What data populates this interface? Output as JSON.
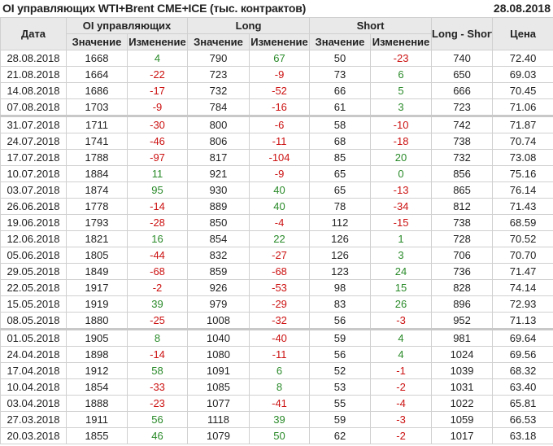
{
  "title": "OI управляющих WTI+Brent CME+ICE (тыс. контрактов)",
  "report_date": "28.08.2018",
  "colors": {
    "positive": "#2a8a2a",
    "negative": "#cc1111",
    "header_bg": "#e9e9e9"
  },
  "headers": {
    "date": "Дата",
    "oi": "OI управляющих",
    "long": "Long",
    "short": "Short",
    "long_short": "Long - Short",
    "price": "Цена",
    "value": "Значение",
    "change": "Изменение"
  },
  "rows": [
    [
      "28.08.2018",
      "1668",
      "4",
      "790",
      "67",
      "50",
      "-23",
      "740",
      "72.40"
    ],
    [
      "21.08.2018",
      "1664",
      "-22",
      "723",
      "-9",
      "73",
      "6",
      "650",
      "69.03"
    ],
    [
      "14.08.2018",
      "1686",
      "-17",
      "732",
      "-52",
      "66",
      "5",
      "666",
      "70.45"
    ],
    [
      "07.08.2018",
      "1703",
      "-9",
      "784",
      "-16",
      "61",
      "3",
      "723",
      "71.06"
    ],
    [
      "31.07.2018",
      "1711",
      "-30",
      "800",
      "-6",
      "58",
      "-10",
      "742",
      "71.87"
    ],
    [
      "24.07.2018",
      "1741",
      "-46",
      "806",
      "-11",
      "68",
      "-18",
      "738",
      "70.74"
    ],
    [
      "17.07.2018",
      "1788",
      "-97",
      "817",
      "-104",
      "85",
      "20",
      "732",
      "73.08"
    ],
    [
      "10.07.2018",
      "1884",
      "11",
      "921",
      "-9",
      "65",
      "0",
      "856",
      "75.16"
    ],
    [
      "03.07.2018",
      "1874",
      "95",
      "930",
      "40",
      "65",
      "-13",
      "865",
      "76.14"
    ],
    [
      "26.06.2018",
      "1778",
      "-14",
      "889",
      "40",
      "78",
      "-34",
      "812",
      "71.43"
    ],
    [
      "19.06.2018",
      "1793",
      "-28",
      "850",
      "-4",
      "112",
      "-15",
      "738",
      "68.59"
    ],
    [
      "12.06.2018",
      "1821",
      "16",
      "854",
      "22",
      "126",
      "1",
      "728",
      "70.52"
    ],
    [
      "05.06.2018",
      "1805",
      "-44",
      "832",
      "-27",
      "126",
      "3",
      "706",
      "70.70"
    ],
    [
      "29.05.2018",
      "1849",
      "-68",
      "859",
      "-68",
      "123",
      "24",
      "736",
      "71.47"
    ],
    [
      "22.05.2018",
      "1917",
      "-2",
      "926",
      "-53",
      "98",
      "15",
      "828",
      "74.14"
    ],
    [
      "15.05.2018",
      "1919",
      "39",
      "979",
      "-29",
      "83",
      "26",
      "896",
      "72.93"
    ],
    [
      "08.05.2018",
      "1880",
      "-25",
      "1008",
      "-32",
      "56",
      "-3",
      "952",
      "71.13"
    ],
    [
      "01.05.2018",
      "1905",
      "8",
      "1040",
      "-40",
      "59",
      "4",
      "981",
      "69.64"
    ],
    [
      "24.04.2018",
      "1898",
      "-14",
      "1080",
      "-11",
      "56",
      "4",
      "1024",
      "69.56"
    ],
    [
      "17.04.2018",
      "1912",
      "58",
      "1091",
      "6",
      "52",
      "-1",
      "1039",
      "68.32"
    ],
    [
      "10.04.2018",
      "1854",
      "-33",
      "1085",
      "8",
      "53",
      "-2",
      "1031",
      "63.40"
    ],
    [
      "03.04.2018",
      "1888",
      "-23",
      "1077",
      "-41",
      "55",
      "-4",
      "1022",
      "65.81"
    ],
    [
      "27.03.2018",
      "1911",
      "56",
      "1118",
      "39",
      "59",
      "-3",
      "1059",
      "66.53"
    ],
    [
      "20.03.2018",
      "1855",
      "46",
      "1079",
      "50",
      "62",
      "-2",
      "1017",
      "63.18"
    ]
  ]
}
